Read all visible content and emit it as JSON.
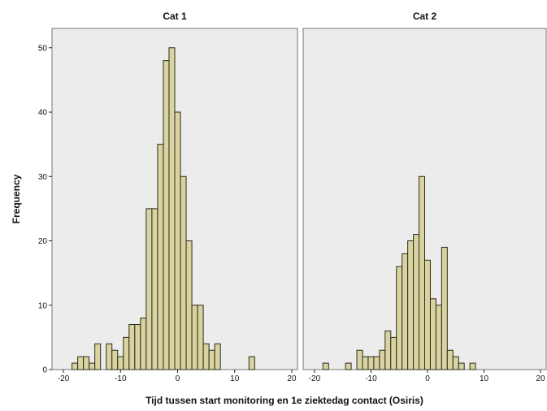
{
  "chart_data": {
    "type": "bar",
    "subtype": "histogram-panels",
    "xlabel": "Tijd tussen start monitoring en 1e ziektedag contact (Osiris)",
    "ylabel": "Frequency",
    "xlim": [
      -22,
      21
    ],
    "ylim": [
      0,
      53
    ],
    "x_ticks": [
      -20,
      -10,
      0,
      10,
      20
    ],
    "y_ticks": [
      0,
      10,
      20,
      30,
      40,
      50
    ],
    "bin_width": 1,
    "grid": false,
    "colors": {
      "bar_fill": "#d8d3a1",
      "bar_stroke": "#2b2b18",
      "panel_bg": "#ececec"
    },
    "panels": [
      {
        "title": "Cat 1",
        "bins": [
          -18,
          -17,
          -16,
          -15,
          -14,
          -12,
          -11,
          -10,
          -9,
          -8,
          -7,
          -6,
          -5,
          -4,
          -3,
          -2,
          -1,
          0,
          1,
          2,
          3,
          4,
          5,
          6,
          7,
          13
        ],
        "counts": [
          1,
          2,
          2,
          1,
          4,
          4,
          3,
          2,
          5,
          7,
          7,
          8,
          25,
          25,
          35,
          48,
          50,
          40,
          30,
          20,
          10,
          10,
          4,
          3,
          4,
          2
        ]
      },
      {
        "title": "Cat 2",
        "bins": [
          -18,
          -14,
          -12,
          -11,
          -10,
          -9,
          -8,
          -7,
          -6,
          -5,
          -4,
          -3,
          -2,
          -1,
          0,
          1,
          2,
          3,
          4,
          5,
          6,
          8
        ],
        "counts": [
          1,
          1,
          3,
          2,
          2,
          2,
          3,
          6,
          5,
          16,
          18,
          20,
          21,
          30,
          17,
          11,
          10,
          19,
          3,
          2,
          1,
          1
        ]
      }
    ]
  }
}
